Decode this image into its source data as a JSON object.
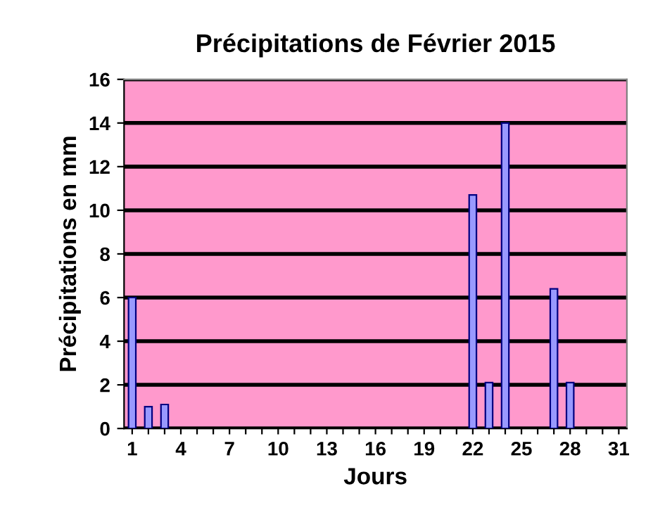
{
  "chart_data": {
    "type": "bar",
    "title": "Précipitations de Février 2015",
    "xlabel": "Jours",
    "ylabel": "Précipitations en mm",
    "categories": [
      "1",
      null,
      null,
      "4",
      null,
      null,
      "7",
      null,
      null,
      "10",
      null,
      null,
      "13",
      null,
      null,
      "16",
      null,
      null,
      "19",
      null,
      null,
      "22",
      null,
      null,
      "25",
      null,
      null,
      "28",
      null,
      null,
      "31"
    ],
    "values": [
      6,
      1.0,
      1.1,
      0,
      0,
      0,
      0,
      0,
      0,
      0,
      0,
      0,
      0,
      0,
      0,
      0,
      0,
      0,
      0,
      0,
      0,
      10.7,
      2.1,
      14,
      0,
      0,
      6.4,
      2.1,
      0,
      0,
      0
    ],
    "color": "#9999ff",
    "ylim": [
      0,
      16
    ],
    "yticks": [
      0,
      2,
      4,
      6,
      8,
      10,
      12,
      14,
      16
    ],
    "grid": "y",
    "legend": false
  }
}
